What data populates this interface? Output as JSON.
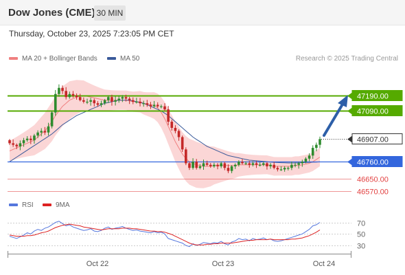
{
  "header": {
    "title": "Dow Jones (CME)",
    "interval": "30 MIN"
  },
  "timestamp": "Thursday, October 23, 2025 7:23:05 PM CET",
  "legend": {
    "ma20": {
      "label": "MA 20 + Bollinger Bands",
      "color": "#f08080"
    },
    "ma50": {
      "label": "MA 50",
      "color": "#3a5a9a"
    }
  },
  "copyright": "Research © 2025 Trading Central",
  "colors": {
    "resistance": "#55aa00",
    "support": "#3366dd",
    "support_minor": "#e24040",
    "current": "#333333",
    "arrow": "#2d5fa8",
    "band": "#f9c8c8",
    "candle_up": "#2e8b2e",
    "candle_down": "#c42828",
    "rsi": "#5577dd",
    "rsi_ma": "#dd2222"
  },
  "levels": [
    {
      "label": "47190.00",
      "value": 47190,
      "type": "resistance"
    },
    {
      "label": "47090.00",
      "value": 47090,
      "type": "resistance"
    },
    {
      "label": "46907.00",
      "value": 46907,
      "type": "current"
    },
    {
      "label": "46760.00",
      "value": 46760,
      "type": "support"
    },
    {
      "label": "46650.00",
      "value": 46650,
      "type": "support_minor"
    },
    {
      "label": "46570.00",
      "value": 46570,
      "type": "support_minor"
    }
  ],
  "x_axis": {
    "labels": [
      "Oct 22",
      "Oct 23",
      "Oct 24"
    ]
  },
  "rsi_panel": {
    "legend_rsi": "RSI",
    "legend_ma": "9MA",
    "ticks": [
      "70",
      "50",
      "30"
    ],
    "tick_values": [
      70,
      50,
      30
    ]
  },
  "price_series": {
    "open": [
      46900,
      46880,
      46870,
      46860,
      46880,
      46900,
      46910,
      46900,
      46930,
      46950,
      46960,
      46950,
      46990,
      47080,
      47200,
      47240,
      47220,
      47180,
      47200,
      47190,
      47180,
      47160,
      47150,
      47150,
      47160,
      47140,
      47130,
      47140,
      47160,
      47180,
      47150,
      47160,
      47170,
      47180,
      47170,
      47160,
      47150,
      47150,
      47140,
      47140,
      47130,
      47120,
      47130,
      47120,
      47120,
      47100,
      47020,
      46980,
      46960,
      46920,
      46840,
      46750,
      46720,
      46760,
      46720,
      46730,
      46750,
      46740,
      46730,
      46740,
      46730,
      46750,
      46720,
      46700,
      46730,
      46740,
      46760,
      46750,
      46750,
      46740,
      46750,
      46740,
      46740,
      46750,
      46730,
      46740,
      46720,
      46710,
      46710,
      46720,
      46720,
      46740,
      46740,
      46750,
      46760,
      46780,
      46800,
      46850,
      46870
    ],
    "close": [
      46880,
      46870,
      46860,
      46880,
      46900,
      46910,
      46900,
      46930,
      46950,
      46960,
      46950,
      46990,
      47080,
      47200,
      47240,
      47220,
      47180,
      47200,
      47190,
      47180,
      47160,
      47150,
      47150,
      47160,
      47140,
      47130,
      47140,
      47160,
      47180,
      47150,
      47160,
      47170,
      47180,
      47170,
      47160,
      47150,
      47150,
      47140,
      47140,
      47130,
      47120,
      47130,
      47120,
      47120,
      47100,
      47020,
      46980,
      46960,
      46920,
      46840,
      46750,
      46720,
      46760,
      46720,
      46730,
      46750,
      46740,
      46730,
      46740,
      46730,
      46750,
      46720,
      46700,
      46730,
      46740,
      46760,
      46750,
      46750,
      46740,
      46750,
      46740,
      46740,
      46750,
      46730,
      46740,
      46720,
      46710,
      46710,
      46720,
      46720,
      46740,
      46740,
      46750,
      46760,
      46780,
      46800,
      46850,
      46870,
      46907
    ]
  },
  "ma20_series": [
    46830,
    46840,
    46850,
    46860,
    46870,
    46880,
    46890,
    46900,
    46920,
    46940,
    46960,
    46990,
    47020,
    47060,
    47090,
    47120,
    47140,
    47160,
    47170,
    47180,
    47185,
    47190,
    47185,
    47180,
    47175,
    47170,
    47165,
    47160,
    47160,
    47160,
    47160,
    47160,
    47160,
    47160,
    47155,
    47150,
    47150,
    47150,
    47140,
    47135,
    47130,
    47125,
    47110,
    47080,
    47040,
    46990,
    46940,
    46890,
    46850,
    46810,
    46780,
    46760,
    46750,
    46740,
    46735,
    46730,
    46730,
    46730,
    46735,
    46735,
    46735,
    46735,
    46735,
    46735,
    46735,
    46740,
    46740,
    46740,
    46740,
    46740,
    46740,
    46740,
    46740,
    46740,
    46735,
    46730,
    46730,
    46730,
    46730,
    46730,
    46730,
    46735,
    46735,
    46740,
    46745,
    46750,
    46760,
    46775,
    46790
  ],
  "ma50_series": [
    46760,
    46775,
    46790,
    46805,
    46820,
    46835,
    46850,
    46865,
    46880,
    46895,
    46910,
    46925,
    46940,
    46960,
    46980,
    47000,
    47015,
    47030,
    47045,
    47060,
    47070,
    47080,
    47090,
    47100,
    47110,
    47120,
    47130,
    47140,
    47145,
    47150,
    47155,
    47160,
    47160,
    47160,
    47160,
    47155,
    47150,
    47145,
    47140,
    47130,
    47120,
    47110,
    47100,
    47090,
    47075,
    47060,
    47040,
    47020,
    47000,
    46980,
    46960,
    46940,
    46920,
    46905,
    46890,
    46875,
    46860,
    46850,
    46840,
    46830,
    46820,
    46810,
    46800,
    46795,
    46790,
    46785,
    46780,
    46775,
    46770,
    46768,
    46766,
    46764,
    46762,
    46760,
    46758,
    46756,
    46755,
    46754,
    46753,
    46752,
    46752,
    46752,
    46753,
    46754,
    46755,
    46756,
    46757,
    46758,
    46760
  ],
  "rsi_series": [
    46,
    44,
    42,
    45,
    48,
    52,
    50,
    55,
    58,
    56,
    60,
    62,
    66,
    70,
    72,
    68,
    64,
    66,
    62,
    60,
    58,
    56,
    57,
    59,
    55,
    54,
    56,
    60,
    62,
    58,
    60,
    61,
    63,
    60,
    58,
    56,
    57,
    55,
    54,
    53,
    52,
    54,
    52,
    53,
    50,
    42,
    40,
    38,
    36,
    34,
    30,
    28,
    33,
    30,
    32,
    35,
    34,
    33,
    35,
    34,
    37,
    33,
    31,
    36,
    38,
    42,
    40,
    41,
    38,
    42,
    40,
    41,
    43,
    40,
    41,
    38,
    37,
    38,
    40,
    42,
    44,
    46,
    48,
    50,
    54,
    58,
    64,
    66,
    70
  ],
  "rsi_ma_series": [
    48,
    47,
    46,
    46,
    46,
    47,
    47,
    48,
    50,
    52,
    53,
    55,
    58,
    61,
    63,
    65,
    66,
    67,
    66,
    65,
    64,
    62,
    61,
    60,
    59,
    58,
    57,
    58,
    59,
    59,
    59,
    59,
    60,
    60,
    60,
    59,
    59,
    58,
    57,
    56,
    55,
    55,
    54,
    54,
    53,
    51,
    49,
    46,
    43,
    40,
    37,
    34,
    32,
    31,
    31,
    31,
    32,
    32,
    33,
    33,
    34,
    34,
    34,
    34,
    35,
    36,
    37,
    38,
    39,
    39,
    40,
    40,
    40,
    40,
    41,
    40,
    40,
    40,
    40,
    40,
    41,
    41,
    42,
    43,
    45,
    47,
    50,
    53,
    57
  ]
}
